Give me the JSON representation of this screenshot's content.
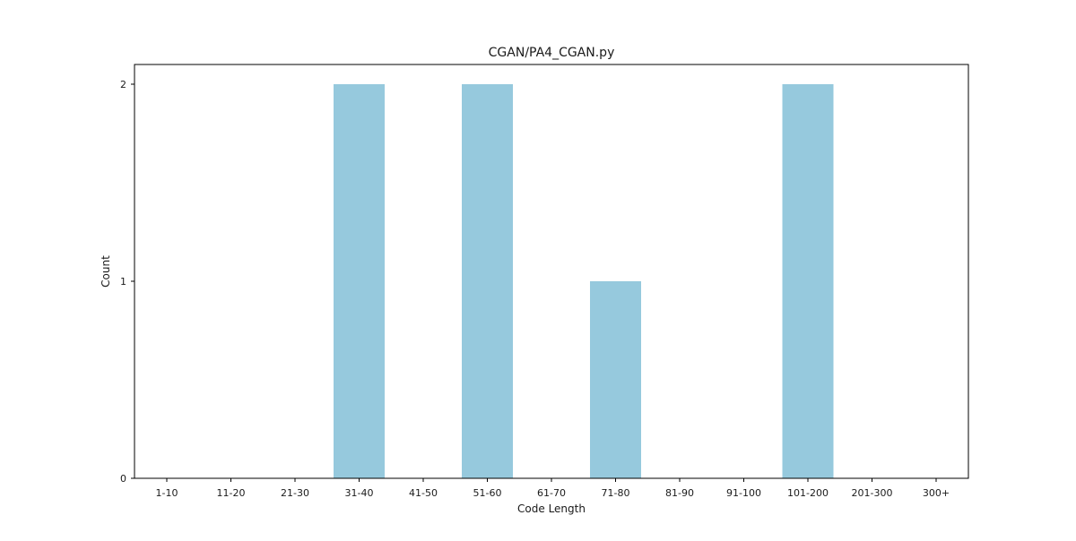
{
  "chart_data": {
    "type": "bar",
    "title": "CGAN/PA4_CGAN.py",
    "xlabel": "Code Length",
    "ylabel": "Count",
    "categories": [
      "1-10",
      "11-20",
      "21-30",
      "31-40",
      "41-50",
      "51-60",
      "61-70",
      "71-80",
      "81-90",
      "91-100",
      "101-200",
      "201-300",
      "300+"
    ],
    "values": [
      0,
      0,
      0,
      2,
      0,
      2,
      0,
      1,
      0,
      0,
      2,
      0,
      0
    ],
    "ylim": [
      0,
      2.1
    ],
    "yticks": [
      0,
      1,
      2
    ],
    "bar_color": "#96c9dd",
    "grid": false,
    "legend": "none"
  }
}
